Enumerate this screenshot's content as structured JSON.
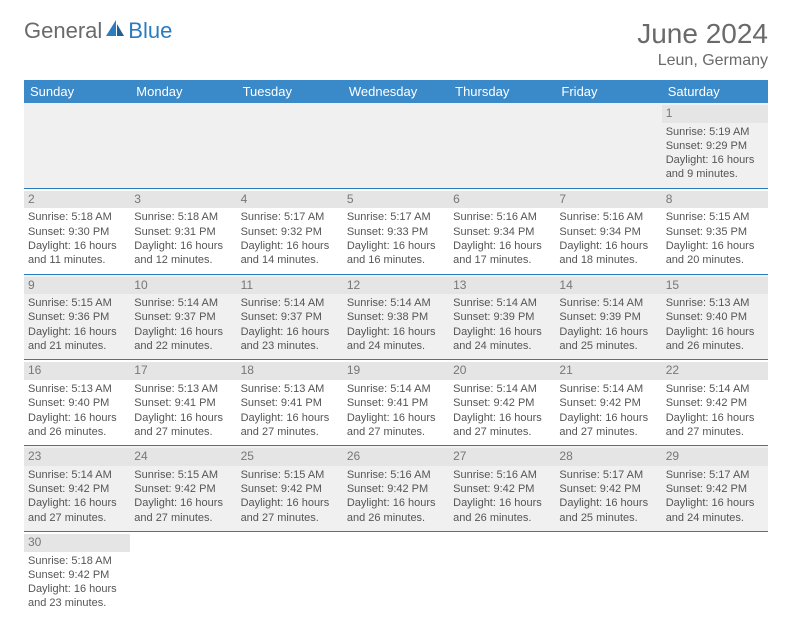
{
  "logo": {
    "part1": "General",
    "part2": "Blue"
  },
  "header": {
    "month": "June 2024",
    "location": "Leun, Germany"
  },
  "colors": {
    "header_bg": "#3a89c9",
    "header_text": "#ffffff",
    "daynum_bg": "#e5e5e5",
    "row_separator": "#2b7bbf",
    "text": "#555555",
    "logo_gray": "#6a6a6a",
    "logo_blue": "#2b7bbf"
  },
  "dayNames": [
    "Sunday",
    "Monday",
    "Tuesday",
    "Wednesday",
    "Thursday",
    "Friday",
    "Saturday"
  ],
  "weeks": [
    [
      {
        "n": "",
        "sr": "",
        "ss": "",
        "dl": ""
      },
      {
        "n": "",
        "sr": "",
        "ss": "",
        "dl": ""
      },
      {
        "n": "",
        "sr": "",
        "ss": "",
        "dl": ""
      },
      {
        "n": "",
        "sr": "",
        "ss": "",
        "dl": ""
      },
      {
        "n": "",
        "sr": "",
        "ss": "",
        "dl": ""
      },
      {
        "n": "",
        "sr": "",
        "ss": "",
        "dl": ""
      },
      {
        "n": "1",
        "sr": "Sunrise: 5:19 AM",
        "ss": "Sunset: 9:29 PM",
        "dl": "Daylight: 16 hours and 9 minutes."
      }
    ],
    [
      {
        "n": "2",
        "sr": "Sunrise: 5:18 AM",
        "ss": "Sunset: 9:30 PM",
        "dl": "Daylight: 16 hours and 11 minutes."
      },
      {
        "n": "3",
        "sr": "Sunrise: 5:18 AM",
        "ss": "Sunset: 9:31 PM",
        "dl": "Daylight: 16 hours and 12 minutes."
      },
      {
        "n": "4",
        "sr": "Sunrise: 5:17 AM",
        "ss": "Sunset: 9:32 PM",
        "dl": "Daylight: 16 hours and 14 minutes."
      },
      {
        "n": "5",
        "sr": "Sunrise: 5:17 AM",
        "ss": "Sunset: 9:33 PM",
        "dl": "Daylight: 16 hours and 16 minutes."
      },
      {
        "n": "6",
        "sr": "Sunrise: 5:16 AM",
        "ss": "Sunset: 9:34 PM",
        "dl": "Daylight: 16 hours and 17 minutes."
      },
      {
        "n": "7",
        "sr": "Sunrise: 5:16 AM",
        "ss": "Sunset: 9:34 PM",
        "dl": "Daylight: 16 hours and 18 minutes."
      },
      {
        "n": "8",
        "sr": "Sunrise: 5:15 AM",
        "ss": "Sunset: 9:35 PM",
        "dl": "Daylight: 16 hours and 20 minutes."
      }
    ],
    [
      {
        "n": "9",
        "sr": "Sunrise: 5:15 AM",
        "ss": "Sunset: 9:36 PM",
        "dl": "Daylight: 16 hours and 21 minutes."
      },
      {
        "n": "10",
        "sr": "Sunrise: 5:14 AM",
        "ss": "Sunset: 9:37 PM",
        "dl": "Daylight: 16 hours and 22 minutes."
      },
      {
        "n": "11",
        "sr": "Sunrise: 5:14 AM",
        "ss": "Sunset: 9:37 PM",
        "dl": "Daylight: 16 hours and 23 minutes."
      },
      {
        "n": "12",
        "sr": "Sunrise: 5:14 AM",
        "ss": "Sunset: 9:38 PM",
        "dl": "Daylight: 16 hours and 24 minutes."
      },
      {
        "n": "13",
        "sr": "Sunrise: 5:14 AM",
        "ss": "Sunset: 9:39 PM",
        "dl": "Daylight: 16 hours and 24 minutes."
      },
      {
        "n": "14",
        "sr": "Sunrise: 5:14 AM",
        "ss": "Sunset: 9:39 PM",
        "dl": "Daylight: 16 hours and 25 minutes."
      },
      {
        "n": "15",
        "sr": "Sunrise: 5:13 AM",
        "ss": "Sunset: 9:40 PM",
        "dl": "Daylight: 16 hours and 26 minutes."
      }
    ],
    [
      {
        "n": "16",
        "sr": "Sunrise: 5:13 AM",
        "ss": "Sunset: 9:40 PM",
        "dl": "Daylight: 16 hours and 26 minutes."
      },
      {
        "n": "17",
        "sr": "Sunrise: 5:13 AM",
        "ss": "Sunset: 9:41 PM",
        "dl": "Daylight: 16 hours and 27 minutes."
      },
      {
        "n": "18",
        "sr": "Sunrise: 5:13 AM",
        "ss": "Sunset: 9:41 PM",
        "dl": "Daylight: 16 hours and 27 minutes."
      },
      {
        "n": "19",
        "sr": "Sunrise: 5:14 AM",
        "ss": "Sunset: 9:41 PM",
        "dl": "Daylight: 16 hours and 27 minutes."
      },
      {
        "n": "20",
        "sr": "Sunrise: 5:14 AM",
        "ss": "Sunset: 9:42 PM",
        "dl": "Daylight: 16 hours and 27 minutes."
      },
      {
        "n": "21",
        "sr": "Sunrise: 5:14 AM",
        "ss": "Sunset: 9:42 PM",
        "dl": "Daylight: 16 hours and 27 minutes."
      },
      {
        "n": "22",
        "sr": "Sunrise: 5:14 AM",
        "ss": "Sunset: 9:42 PM",
        "dl": "Daylight: 16 hours and 27 minutes."
      }
    ],
    [
      {
        "n": "23",
        "sr": "Sunrise: 5:14 AM",
        "ss": "Sunset: 9:42 PM",
        "dl": "Daylight: 16 hours and 27 minutes."
      },
      {
        "n": "24",
        "sr": "Sunrise: 5:15 AM",
        "ss": "Sunset: 9:42 PM",
        "dl": "Daylight: 16 hours and 27 minutes."
      },
      {
        "n": "25",
        "sr": "Sunrise: 5:15 AM",
        "ss": "Sunset: 9:42 PM",
        "dl": "Daylight: 16 hours and 27 minutes."
      },
      {
        "n": "26",
        "sr": "Sunrise: 5:16 AM",
        "ss": "Sunset: 9:42 PM",
        "dl": "Daylight: 16 hours and 26 minutes."
      },
      {
        "n": "27",
        "sr": "Sunrise: 5:16 AM",
        "ss": "Sunset: 9:42 PM",
        "dl": "Daylight: 16 hours and 26 minutes."
      },
      {
        "n": "28",
        "sr": "Sunrise: 5:17 AM",
        "ss": "Sunset: 9:42 PM",
        "dl": "Daylight: 16 hours and 25 minutes."
      },
      {
        "n": "29",
        "sr": "Sunrise: 5:17 AM",
        "ss": "Sunset: 9:42 PM",
        "dl": "Daylight: 16 hours and 24 minutes."
      }
    ],
    [
      {
        "n": "30",
        "sr": "Sunrise: 5:18 AM",
        "ss": "Sunset: 9:42 PM",
        "dl": "Daylight: 16 hours and 23 minutes."
      },
      {
        "n": "",
        "sr": "",
        "ss": "",
        "dl": ""
      },
      {
        "n": "",
        "sr": "",
        "ss": "",
        "dl": ""
      },
      {
        "n": "",
        "sr": "",
        "ss": "",
        "dl": ""
      },
      {
        "n": "",
        "sr": "",
        "ss": "",
        "dl": ""
      },
      {
        "n": "",
        "sr": "",
        "ss": "",
        "dl": ""
      },
      {
        "n": "",
        "sr": "",
        "ss": "",
        "dl": ""
      }
    ]
  ]
}
